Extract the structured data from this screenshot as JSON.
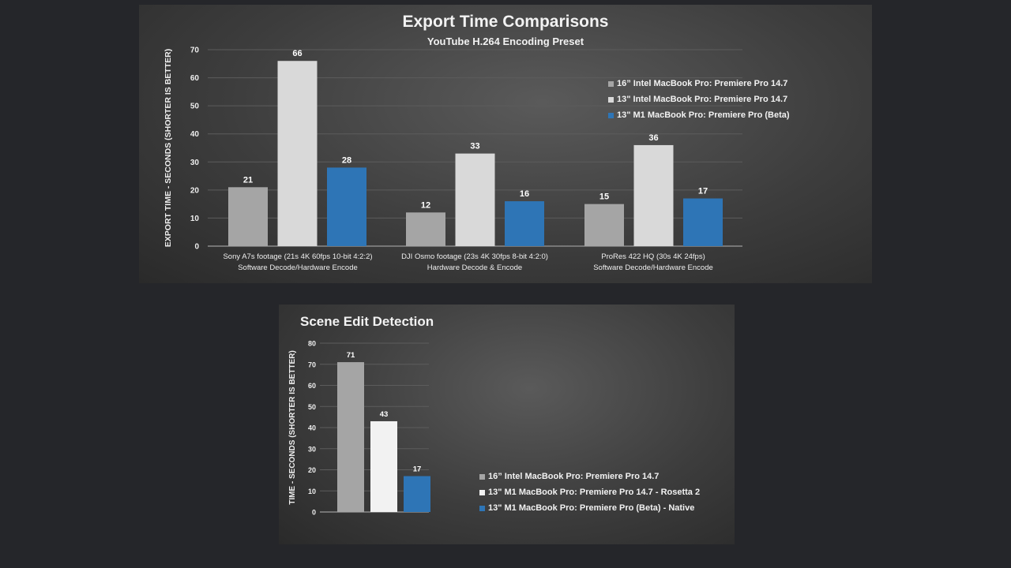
{
  "chart_data": [
    {
      "type": "bar",
      "title": "Export Time Comparisons",
      "subtitle": "YouTube H.264 Encoding Preset",
      "ylabel": "EXPORT TIME - SECONDS (SHORTER IS BETTER)",
      "xlabel": "",
      "ylim": [
        0,
        70
      ],
      "yticks": [
        0,
        10,
        20,
        30,
        40,
        50,
        60,
        70
      ],
      "grid": true,
      "legend_position": "top-right",
      "categories": [
        {
          "line1": "Sony A7s footage (21s 4K 60fps 10-bit 4:2:2)",
          "line2": "Software Decode/Hardware Encode"
        },
        {
          "line1": "DJI Osmo footage (23s 4K 30fps 8-bit 4:2:0)",
          "line2": "Hardware Decode & Encode"
        },
        {
          "line1": "ProRes 422 HQ (30s 4K 24fps)",
          "line2": "Software Decode/Hardware Encode"
        }
      ],
      "series": [
        {
          "name": "16” Intel MacBook Pro: Premiere Pro 14.7",
          "color": "#a5a5a5",
          "values": [
            21,
            12,
            15
          ]
        },
        {
          "name": "13\" Intel MacBook Pro: Premiere Pro 14.7",
          "color": "#d9d9d9",
          "values": [
            66,
            33,
            36
          ]
        },
        {
          "name": "13\" M1 MacBook Pro: Premiere Pro (Beta)",
          "color": "#2e75b6",
          "values": [
            28,
            16,
            17
          ]
        }
      ]
    },
    {
      "type": "bar",
      "title": "Scene Edit Detection",
      "ylabel": "TIME - SECONDS (SHORTER IS BETTER)",
      "xlabel": "",
      "ylim": [
        0,
        80
      ],
      "yticks": [
        0,
        10,
        20,
        30,
        40,
        50,
        60,
        70,
        80
      ],
      "grid": true,
      "legend_position": "bottom-right",
      "categories": [
        ""
      ],
      "series": [
        {
          "name": "16” Intel MacBook Pro: Premiere Pro 14.7",
          "color": "#a5a5a5",
          "values": [
            71
          ]
        },
        {
          "name": "13\" M1 MacBook Pro: Premiere Pro 14.7 - Rosetta 2",
          "color": "#f2f2f2",
          "values": [
            43
          ]
        },
        {
          "name": "13\" M1 MacBook Pro: Premiere Pro (Beta) - Native",
          "color": "#2e75b6",
          "values": [
            17
          ]
        }
      ]
    }
  ]
}
